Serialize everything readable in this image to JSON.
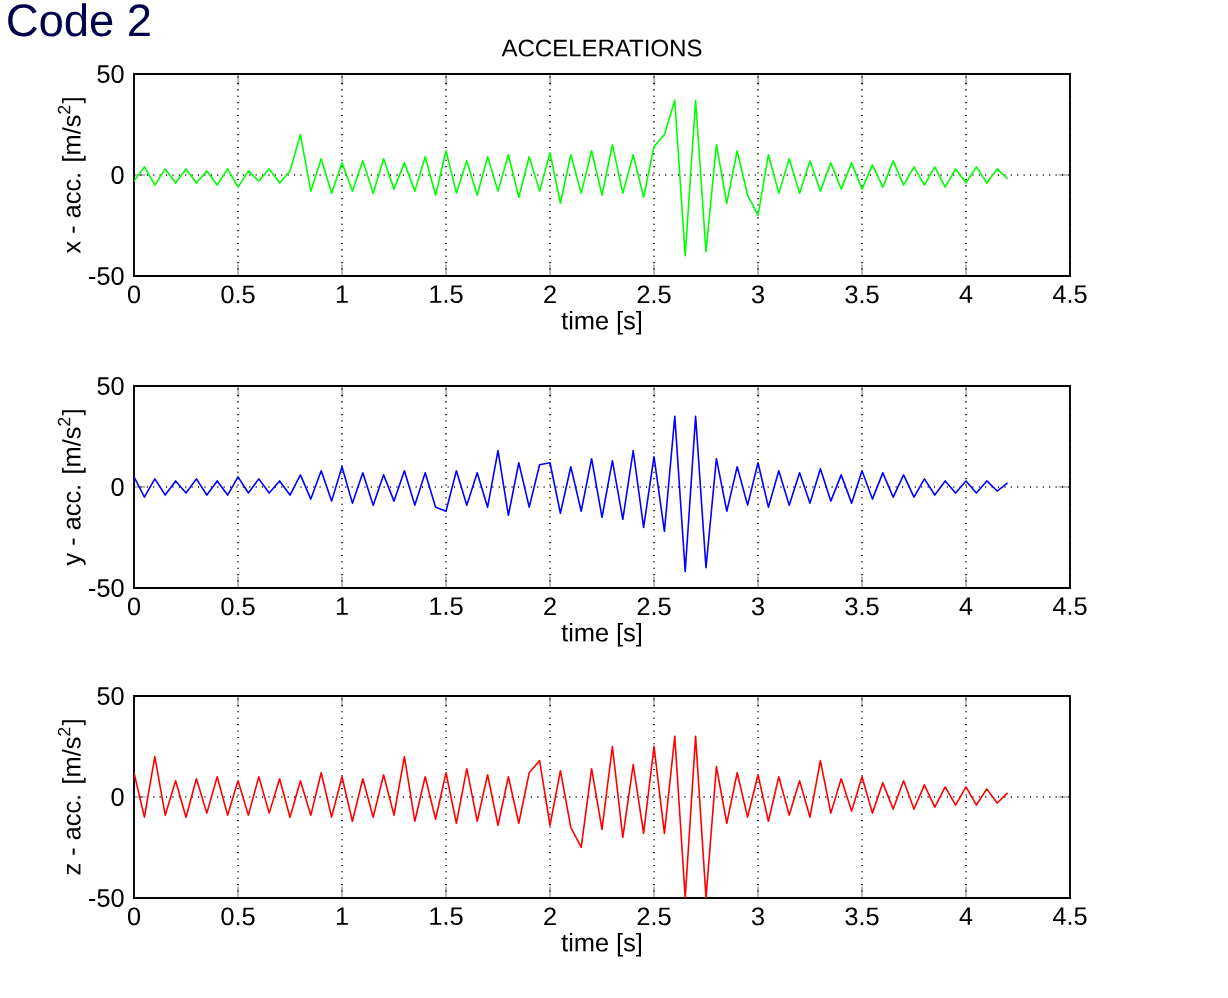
{
  "chart_data": [
    {
      "type": "line",
      "title": "ACCELERATIONS",
      "annotations": [
        "Code 2"
      ],
      "xlabel": "time [s]",
      "ylabel": "x - acc. [m/s$^{2}$]",
      "color": "#00ff00",
      "grid": true,
      "xlim": [
        0,
        4.5
      ],
      "ylim": [
        -50,
        50
      ],
      "xticks": [
        0,
        0.5,
        1,
        1.5,
        2,
        2.5,
        3,
        3.5,
        4,
        4.5
      ],
      "yticks": [
        -50,
        0,
        50
      ],
      "x": [
        0,
        0.05,
        0.1,
        0.15,
        0.2,
        0.25,
        0.3,
        0.35,
        0.4,
        0.45,
        0.5,
        0.55,
        0.6,
        0.65,
        0.7,
        0.75,
        0.8,
        0.85,
        0.9,
        0.95,
        1.0,
        1.05,
        1.1,
        1.15,
        1.2,
        1.25,
        1.3,
        1.35,
        1.4,
        1.45,
        1.5,
        1.55,
        1.6,
        1.65,
        1.7,
        1.75,
        1.8,
        1.85,
        1.9,
        1.95,
        2.0,
        2.05,
        2.1,
        2.15,
        2.2,
        2.25,
        2.3,
        2.35,
        2.4,
        2.45,
        2.5,
        2.55,
        2.6,
        2.65,
        2.7,
        2.75,
        2.8,
        2.85,
        2.9,
        2.95,
        3.0,
        3.05,
        3.1,
        3.15,
        3.2,
        3.25,
        3.3,
        3.35,
        3.4,
        3.45,
        3.5,
        3.55,
        3.6,
        3.65,
        3.7,
        3.75,
        3.8,
        3.85,
        3.9,
        3.95,
        4.0,
        4.05,
        4.1,
        4.15,
        4.2
      ],
      "values": [
        -3,
        4,
        -5,
        3,
        -4,
        3,
        -4,
        2,
        -5,
        3,
        -6,
        2,
        -3,
        3,
        -4,
        2,
        20,
        -8,
        8,
        -9,
        6,
        -8,
        7,
        -9,
        8,
        -7,
        6,
        -8,
        9,
        -10,
        12,
        -9,
        7,
        -10,
        9,
        -8,
        10,
        -11,
        9,
        -8,
        11,
        -14,
        10,
        -9,
        12,
        -10,
        15,
        -9,
        10,
        -11,
        14,
        20,
        37,
        -40,
        37,
        -38,
        15,
        -14,
        12,
        -10,
        -20,
        10,
        -9,
        8,
        -9,
        7,
        -8,
        6,
        -7,
        6,
        -7,
        5,
        -6,
        7,
        -5,
        4,
        -5,
        4,
        -6,
        3,
        -4,
        4,
        -4,
        3,
        -2
      ]
    },
    {
      "type": "line",
      "xlabel": "time [s]",
      "ylabel": "y - acc. [m/s$^{2}$]",
      "color": "#0000ff",
      "grid": true,
      "xlim": [
        0,
        4.5
      ],
      "ylim": [
        -50,
        50
      ],
      "xticks": [
        0,
        0.5,
        1,
        1.5,
        2,
        2.5,
        3,
        3.5,
        4,
        4.5
      ],
      "yticks": [
        -50,
        0,
        50
      ],
      "x": [
        0,
        0.05,
        0.1,
        0.15,
        0.2,
        0.25,
        0.3,
        0.35,
        0.4,
        0.45,
        0.5,
        0.55,
        0.6,
        0.65,
        0.7,
        0.75,
        0.8,
        0.85,
        0.9,
        0.95,
        1.0,
        1.05,
        1.1,
        1.15,
        1.2,
        1.25,
        1.3,
        1.35,
        1.4,
        1.45,
        1.5,
        1.55,
        1.6,
        1.65,
        1.7,
        1.75,
        1.8,
        1.85,
        1.9,
        1.95,
        2.0,
        2.05,
        2.1,
        2.15,
        2.2,
        2.25,
        2.3,
        2.35,
        2.4,
        2.45,
        2.5,
        2.55,
        2.6,
        2.65,
        2.7,
        2.75,
        2.8,
        2.85,
        2.9,
        2.95,
        3.0,
        3.05,
        3.1,
        3.15,
        3.2,
        3.25,
        3.3,
        3.35,
        3.4,
        3.45,
        3.5,
        3.55,
        3.6,
        3.65,
        3.7,
        3.75,
        3.8,
        3.85,
        3.9,
        3.95,
        4.0,
        4.05,
        4.1,
        4.15,
        4.2
      ],
      "values": [
        5,
        -5,
        4,
        -4,
        3,
        -3,
        4,
        -4,
        3,
        -4,
        5,
        -3,
        4,
        -3,
        3,
        -4,
        6,
        -6,
        8,
        -7,
        10,
        -8,
        7,
        -9,
        6,
        -7,
        8,
        -9,
        7,
        -10,
        -12,
        8,
        -9,
        7,
        -10,
        18,
        -14,
        12,
        -10,
        11,
        12,
        -13,
        10,
        -12,
        14,
        -15,
        13,
        -16,
        18,
        -20,
        15,
        -22,
        35,
        -42,
        35,
        -40,
        14,
        -12,
        10,
        -9,
        12,
        -10,
        8,
        -9,
        7,
        -8,
        9,
        -7,
        6,
        -8,
        8,
        -6,
        7,
        -5,
        6,
        -5,
        4,
        -4,
        3,
        -3,
        3,
        -3,
        3,
        -2,
        2
      ]
    },
    {
      "type": "line",
      "xlabel": "time [s]",
      "ylabel": "z - acc. [m/s$^{2}$]",
      "color": "#ff0000",
      "grid": true,
      "xlim": [
        0,
        4.5
      ],
      "ylim": [
        -50,
        50
      ],
      "xticks": [
        0,
        0.5,
        1,
        1.5,
        2,
        2.5,
        3,
        3.5,
        4,
        4.5
      ],
      "yticks": [
        -50,
        0,
        50
      ],
      "x": [
        0,
        0.05,
        0.1,
        0.15,
        0.2,
        0.25,
        0.3,
        0.35,
        0.4,
        0.45,
        0.5,
        0.55,
        0.6,
        0.65,
        0.7,
        0.75,
        0.8,
        0.85,
        0.9,
        0.95,
        1.0,
        1.05,
        1.1,
        1.15,
        1.2,
        1.25,
        1.3,
        1.35,
        1.4,
        1.45,
        1.5,
        1.55,
        1.6,
        1.65,
        1.7,
        1.75,
        1.8,
        1.85,
        1.9,
        1.95,
        2.0,
        2.05,
        2.1,
        2.15,
        2.2,
        2.25,
        2.3,
        2.35,
        2.4,
        2.45,
        2.5,
        2.55,
        2.6,
        2.65,
        2.7,
        2.75,
        2.8,
        2.85,
        2.9,
        2.95,
        3.0,
        3.05,
        3.1,
        3.15,
        3.2,
        3.25,
        3.3,
        3.35,
        3.4,
        3.45,
        3.5,
        3.55,
        3.6,
        3.65,
        3.7,
        3.75,
        3.8,
        3.85,
        3.9,
        3.95,
        4.0,
        4.05,
        4.1,
        4.15,
        4.2
      ],
      "values": [
        12,
        -10,
        20,
        -9,
        8,
        -10,
        9,
        -8,
        10,
        -9,
        8,
        -9,
        10,
        -8,
        9,
        -10,
        8,
        -9,
        12,
        -10,
        10,
        -12,
        9,
        -10,
        11,
        -9,
        20,
        -12,
        10,
        -11,
        12,
        -13,
        14,
        -12,
        11,
        -14,
        10,
        -13,
        12,
        18,
        -14,
        13,
        -15,
        -25,
        14,
        -16,
        25,
        -20,
        16,
        -18,
        25,
        -18,
        30,
        -50,
        30,
        -50,
        15,
        -13,
        12,
        -10,
        11,
        -12,
        10,
        -9,
        8,
        -10,
        18,
        -8,
        9,
        -7,
        10,
        -8,
        7,
        -6,
        8,
        -6,
        6,
        -5,
        5,
        -4,
        5,
        -4,
        4,
        -3,
        2
      ]
    }
  ]
}
